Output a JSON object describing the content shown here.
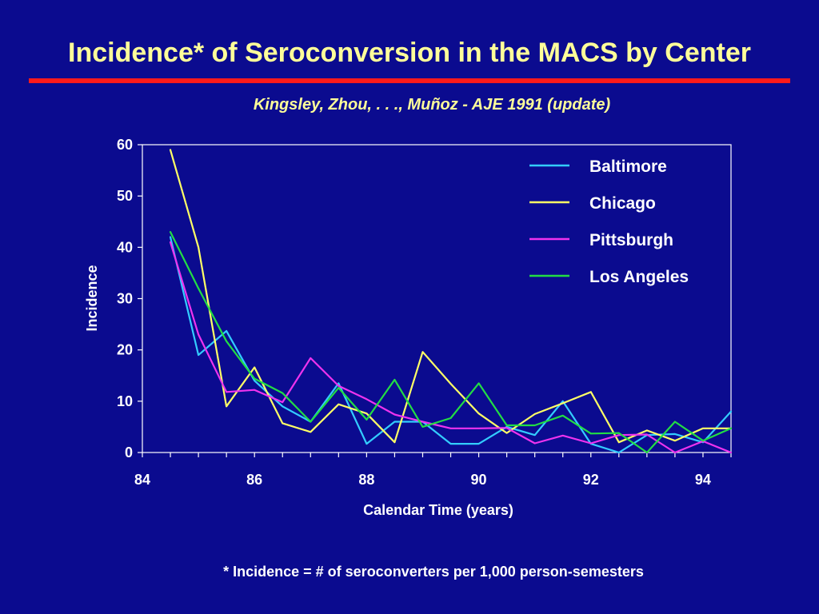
{
  "slide": {
    "title": "Incidence* of Seroconversion in the MACS by Center",
    "subtitle": "Kingsley, Zhou, . . ., Muñoz  -  AJE 1991  (update)",
    "footnote": "* Incidence = # of seroconverters per 1,000 person-semesters",
    "colors": {
      "background": "#0b0b8f",
      "title": "#ffff99",
      "rule": "#ff1a1a",
      "text": "#ffffff"
    }
  },
  "chart_data": {
    "type": "line",
    "title": "",
    "xlabel": "Calendar Time (years)",
    "ylabel": "Incidence",
    "xlim": [
      84,
      94.5
    ],
    "ylim": [
      0,
      60
    ],
    "xticks": [
      84,
      86,
      88,
      90,
      92,
      94
    ],
    "yticks": [
      0,
      10,
      20,
      30,
      40,
      50,
      60
    ],
    "grid": false,
    "legend": "top-right",
    "x": [
      84.5,
      85,
      85.5,
      86,
      86.5,
      87,
      87.5,
      88,
      88.5,
      89,
      89.5,
      90,
      90.5,
      91,
      91.5,
      92,
      92.5,
      93,
      93.5,
      94,
      94.5
    ],
    "series": [
      {
        "name": "Baltimore",
        "color": "#33ccff",
        "values": [
          42,
          19,
          23.7,
          14,
          9,
          6,
          13.5,
          1.7,
          6,
          6,
          1.7,
          1.7,
          5,
          3.4,
          10,
          1.7,
          0,
          3.4,
          3.6,
          2,
          8
        ]
      },
      {
        "name": "Chicago",
        "color": "#ffff66",
        "values": [
          59,
          40,
          9,
          16.6,
          5.7,
          4,
          9.4,
          7.6,
          2,
          19.6,
          13.4,
          7.6,
          3.8,
          7.5,
          9.6,
          11.8,
          2,
          4.3,
          2.3,
          4.7,
          4.7
        ]
      },
      {
        "name": "Pittsburgh",
        "color": "#ee33ee",
        "values": [
          41,
          23,
          11.8,
          12.2,
          9.8,
          18.4,
          13,
          10.4,
          7.4,
          6,
          4.7,
          4.7,
          4.8,
          1.8,
          3.3,
          1.8,
          3.4,
          3.5,
          0,
          2.2,
          0
        ]
      },
      {
        "name": "Los Angeles",
        "color": "#22dd44",
        "values": [
          43,
          32,
          21.7,
          14.4,
          11.6,
          6,
          12.6,
          6.4,
          14.2,
          5,
          6.7,
          13.5,
          5.3,
          5.3,
          7.2,
          3.7,
          3.8,
          0,
          6,
          2.3,
          4.7
        ]
      }
    ]
  }
}
